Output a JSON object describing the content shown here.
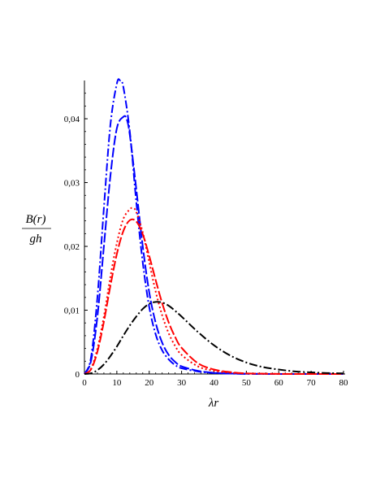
{
  "chart_data": {
    "type": "line",
    "title": "",
    "xlabel": "λr",
    "ylabel_numerator": "B(r)",
    "ylabel_denominator": "gh",
    "xlim": [
      0,
      80
    ],
    "ylim": [
      0,
      0.046
    ],
    "xticks": [
      0,
      10,
      20,
      30,
      40,
      50,
      60,
      70,
      80
    ],
    "yticks": [
      0,
      0.01,
      0.02,
      0.03,
      0.04
    ],
    "xtick_labels": [
      "0",
      "10",
      "20",
      "30",
      "40",
      "50",
      "60",
      "70",
      "80"
    ],
    "ytick_labels": [
      "0",
      "0,01",
      "0,02",
      "0,03",
      "0,04"
    ],
    "grid": false,
    "legend": "none",
    "series": [
      {
        "color": "#0000ff",
        "style": "dashdot",
        "x": [
          0,
          2,
          4,
          6,
          8,
          10,
          11,
          12,
          14,
          16,
          18,
          20,
          22,
          24,
          26,
          28,
          30,
          35,
          40,
          45,
          50,
          60,
          70,
          80
        ],
        "y": [
          0,
          0.0025,
          0.012,
          0.026,
          0.039,
          0.0455,
          0.046,
          0.045,
          0.038,
          0.027,
          0.0175,
          0.0105,
          0.0062,
          0.0037,
          0.0023,
          0.0014,
          0.0009,
          0.0004,
          0.00015,
          6e-05,
          2e-05,
          0,
          0,
          0
        ]
      },
      {
        "color": "#0000ff",
        "style": "longdash",
        "x": [
          0,
          2,
          4,
          6,
          8,
          10,
          12,
          13,
          14,
          16,
          18,
          20,
          22,
          24,
          26,
          28,
          30,
          35,
          40,
          45,
          50,
          60,
          70,
          80
        ],
        "y": [
          0,
          0.002,
          0.009,
          0.02,
          0.031,
          0.0385,
          0.0403,
          0.04,
          0.0375,
          0.029,
          0.02,
          0.0128,
          0.008,
          0.0049,
          0.003,
          0.0019,
          0.0012,
          0.0005,
          0.0002,
          8e-05,
          3e-05,
          0,
          0,
          0
        ]
      },
      {
        "color": "#ff0000",
        "style": "dotted",
        "x": [
          0,
          2,
          4,
          6,
          8,
          10,
          12,
          14,
          15,
          16,
          18,
          20,
          22,
          24,
          26,
          28,
          30,
          35,
          40,
          45,
          50,
          60,
          70,
          80
        ],
        "y": [
          0,
          0.0008,
          0.004,
          0.009,
          0.0152,
          0.0205,
          0.0243,
          0.0258,
          0.026,
          0.0254,
          0.0222,
          0.0175,
          0.0129,
          0.0092,
          0.0064,
          0.0044,
          0.003,
          0.0012,
          0.0005,
          0.0002,
          8e-05,
          1e-05,
          0,
          0
        ]
      },
      {
        "color": "#ff0000",
        "style": "longdash",
        "x": [
          0,
          2,
          4,
          6,
          8,
          10,
          12,
          14,
          16,
          18,
          20,
          22,
          24,
          26,
          28,
          30,
          35,
          40,
          45,
          50,
          60,
          70,
          80
        ],
        "y": [
          0,
          0.0007,
          0.0035,
          0.0082,
          0.0138,
          0.0188,
          0.0224,
          0.0241,
          0.0239,
          0.0219,
          0.0185,
          0.0147,
          0.0111,
          0.0081,
          0.0058,
          0.0041,
          0.0017,
          0.0007,
          0.0003,
          0.0001,
          2e-05,
          0,
          0
        ]
      },
      {
        "color": "#000000",
        "style": "dashdot",
        "x": [
          0,
          2,
          4,
          6,
          8,
          10,
          12,
          14,
          16,
          18,
          20,
          22,
          24,
          26,
          28,
          30,
          35,
          40,
          45,
          50,
          55,
          60,
          65,
          70,
          75,
          80
        ],
        "y": [
          0,
          0.0001,
          0.0006,
          0.0015,
          0.0028,
          0.0043,
          0.006,
          0.0076,
          0.009,
          0.0102,
          0.011,
          0.0113,
          0.0112,
          0.0107,
          0.0099,
          0.009,
          0.0066,
          0.0045,
          0.0029,
          0.0018,
          0.0011,
          0.0007,
          0.0004,
          0.00025,
          0.00015,
          0.0001
        ]
      }
    ]
  }
}
